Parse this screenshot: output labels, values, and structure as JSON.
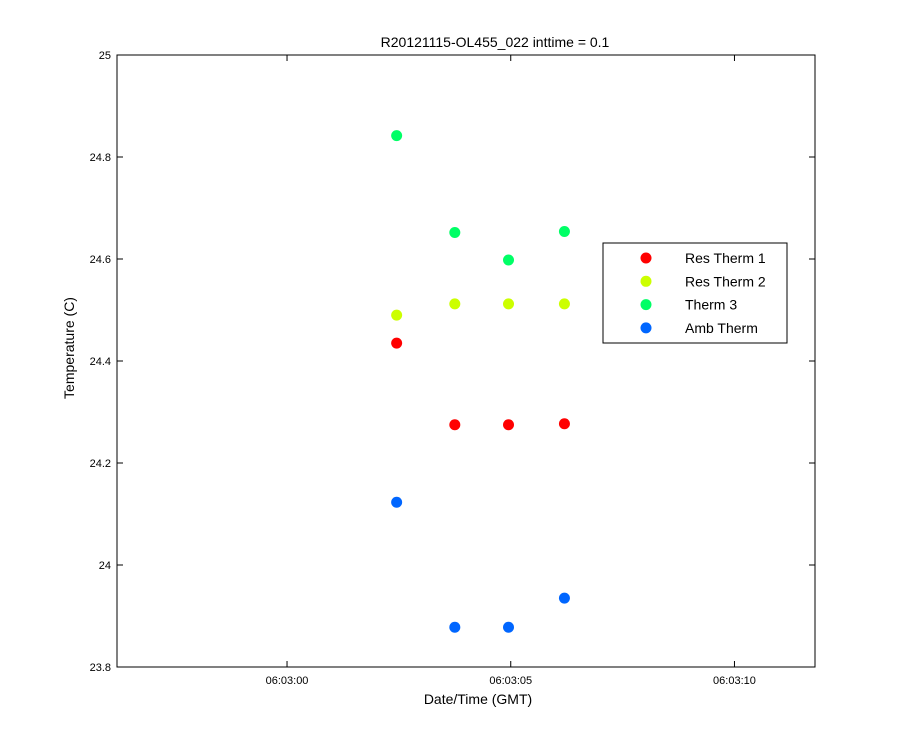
{
  "chart_data": {
    "type": "scatter",
    "title": "R20121115-OL455_022 inttime = 0.1",
    "xlabel": "Date/Time (GMT)",
    "ylabel": "Temperature (C)",
    "xlim": [
      "06:02:56.2",
      "06:03:11.8"
    ],
    "ylim": [
      23.8,
      25
    ],
    "x_ticks": [
      "06:03:00",
      "06:03:05",
      "06:03:10"
    ],
    "y_ticks": [
      "23.8",
      "24",
      "24.2",
      "24.4",
      "24.6",
      "24.8",
      "25"
    ],
    "grid": false,
    "legend_position": "right",
    "x": [
      "06:03:02.45",
      "06:03:03.75",
      "06:03:04.95",
      "06:03:06.2"
    ],
    "series": [
      {
        "name": "Res Therm 1",
        "color": "#ff0000",
        "values": [
          24.435,
          24.275,
          24.275,
          24.277
        ]
      },
      {
        "name": "Res Therm 2",
        "color": "#ccff00",
        "values": [
          24.49,
          24.512,
          24.512,
          24.512
        ]
      },
      {
        "name": "Therm 3",
        "color": "#00ff66",
        "values": [
          24.842,
          24.652,
          24.598,
          24.654
        ]
      },
      {
        "name": "Amb Therm",
        "color": "#0066ff",
        "values": [
          24.123,
          23.878,
          23.878,
          23.935
        ]
      }
    ]
  }
}
